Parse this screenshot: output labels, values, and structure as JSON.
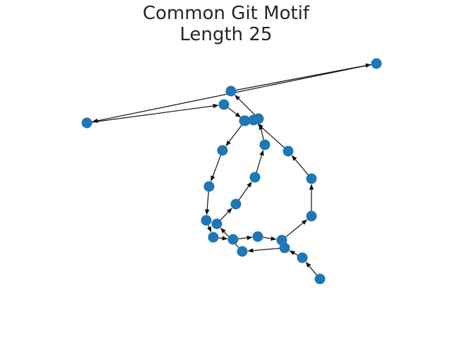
{
  "title_line1": "Common Git Motif",
  "title_line2": "Length 25",
  "colors": {
    "node": "#1f77b4",
    "edge": "#111111",
    "title": "#262626"
  },
  "nodes": [
    {
      "id": "n1"
    },
    {
      "id": "n2"
    },
    {
      "id": "n3"
    },
    {
      "id": "n4"
    },
    {
      "id": "n5"
    },
    {
      "id": "n6"
    },
    {
      "id": "n7"
    },
    {
      "id": "n8"
    },
    {
      "id": "n9"
    },
    {
      "id": "n10"
    },
    {
      "id": "n11"
    },
    {
      "id": "n12"
    },
    {
      "id": "n13"
    },
    {
      "id": "n14"
    },
    {
      "id": "n15"
    },
    {
      "id": "n16"
    },
    {
      "id": "n17"
    },
    {
      "id": "n18"
    },
    {
      "id": "n19"
    },
    {
      "id": "n20"
    },
    {
      "id": "n21"
    },
    {
      "id": "n22"
    },
    {
      "id": "n23"
    },
    {
      "id": "n24"
    },
    {
      "id": "n25"
    },
    {
      "id": "n26"
    }
  ],
  "edges": [
    [
      "n1",
      "n2"
    ],
    [
      "n2",
      "n3"
    ],
    [
      "n3",
      "n4"
    ],
    [
      "n4",
      "n5"
    ],
    [
      "n5",
      "n6"
    ],
    [
      "n6",
      "n7"
    ],
    [
      "n7",
      "n8"
    ],
    [
      "n8",
      "n9"
    ],
    [
      "n9",
      "n10"
    ],
    [
      "n10",
      "n11"
    ],
    [
      "n11",
      "n12"
    ],
    [
      "n12",
      "n13"
    ],
    [
      "n13",
      "n14"
    ],
    [
      "n14",
      "n15"
    ],
    [
      "n15",
      "n16"
    ],
    [
      "n16",
      "n17"
    ],
    [
      "n17",
      "n18"
    ],
    [
      "n18",
      "n19"
    ],
    [
      "n19",
      "n20"
    ],
    [
      "n20",
      "n21"
    ],
    [
      "n21",
      "n22"
    ],
    [
      "n22",
      "n23"
    ],
    [
      "n23",
      "n24"
    ],
    [
      "n24",
      "n25"
    ],
    [
      "n25",
      "n26"
    ]
  ]
}
